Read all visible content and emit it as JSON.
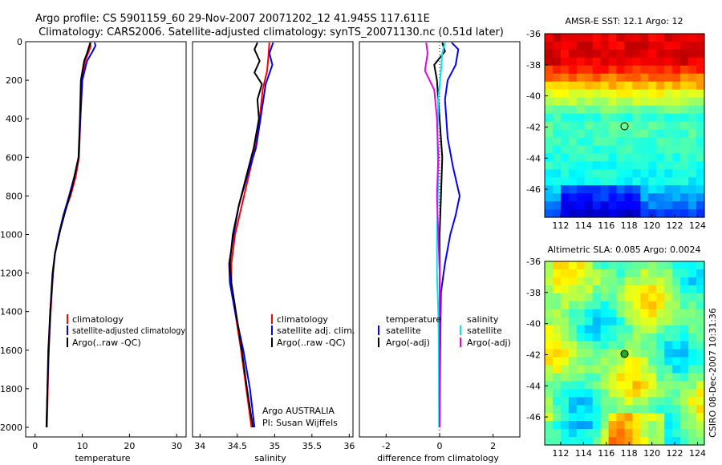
{
  "title": {
    "line1": "Argo profile: CS 5901159_60 29-Nov-2007 20071202_12 41.945S 117.611E",
    "line2": "Climatology: CARS2006. Satellite-adjusted climatology: synTS_20071130.nc (0.51d later)"
  },
  "colors": {
    "climatology": "#ff0000",
    "satellite": "#0000ff",
    "argo": "#000000",
    "salinity_satellite": "#00e5ee",
    "salinity_argo": "#ee00ee"
  },
  "chart_data": [
    {
      "type": "line",
      "name": "temperature-profile",
      "xlabel": "temperature",
      "ylabel": "",
      "xlim": [
        -2,
        32
      ],
      "xticks": [
        "0",
        "10",
        "20",
        "30"
      ],
      "ylim": [
        0,
        2050
      ],
      "yticks": [
        "0",
        "200",
        "400",
        "600",
        "800",
        "1000",
        "1200",
        "1400",
        "1600",
        "1800",
        "2000"
      ],
      "legend": [
        "climatology",
        "satellite-adjusted climatology",
        "Argo(..raw -QC)"
      ],
      "series": [
        {
          "name": "climatology",
          "color": "#ff0000",
          "points": [
            [
              11.5,
              5
            ],
            [
              11.8,
              20
            ],
            [
              11.4,
              50
            ],
            [
              10.6,
              100
            ],
            [
              10.0,
              200
            ],
            [
              9.6,
              400
            ],
            [
              9.3,
              600
            ],
            [
              8.6,
              700
            ],
            [
              7.5,
              800
            ],
            [
              6.0,
              900
            ],
            [
              5.1,
              1000
            ],
            [
              4.2,
              1100
            ],
            [
              3.8,
              1200
            ],
            [
              3.3,
              1400
            ],
            [
              2.9,
              1600
            ],
            [
              2.7,
              1800
            ],
            [
              2.5,
              2000
            ]
          ]
        },
        {
          "name": "satellite-adjusted climatology",
          "color": "#0000ff",
          "points": [
            [
              12.6,
              5
            ],
            [
              12.8,
              20
            ],
            [
              12.2,
              50
            ],
            [
              11.0,
              100
            ],
            [
              10.0,
              200
            ],
            [
              9.6,
              400
            ],
            [
              9.2,
              600
            ],
            [
              8.3,
              700
            ],
            [
              7.2,
              800
            ],
            [
              6.0,
              900
            ],
            [
              5.0,
              1000
            ],
            [
              4.2,
              1100
            ],
            [
              3.8,
              1200
            ],
            [
              3.2,
              1400
            ],
            [
              2.9,
              1600
            ],
            [
              2.6,
              1800
            ],
            [
              2.4,
              2000
            ]
          ]
        },
        {
          "name": "Argo(..raw -QC)",
          "color": "#000000",
          "points": [
            [
              11.8,
              5
            ],
            [
              11.5,
              20
            ],
            [
              11.0,
              60
            ],
            [
              10.4,
              100
            ],
            [
              9.7,
              200
            ],
            [
              9.5,
              400
            ],
            [
              9.2,
              600
            ],
            [
              8.7,
              660
            ],
            [
              7.8,
              760
            ],
            [
              6.4,
              880
            ],
            [
              5.3,
              980
            ],
            [
              4.2,
              1100
            ],
            [
              3.7,
              1200
            ],
            [
              3.2,
              1400
            ],
            [
              2.8,
              1600
            ],
            [
              2.6,
              1800
            ],
            [
              2.4,
              2000
            ]
          ]
        }
      ]
    },
    {
      "type": "line",
      "name": "salinity-profile",
      "xlabel": "salinity",
      "ylabel": "",
      "xlim": [
        33.9,
        36.05
      ],
      "xticks": [
        "34",
        "34.5",
        "35",
        "35.5",
        "36"
      ],
      "ylim": [
        0,
        2050
      ],
      "legend": [
        "climatology",
        "satellite adj. clim.",
        "Argo(..raw -QC)"
      ],
      "annotation": [
        "Argo AUSTRALIA",
        "PI: Susan Wijffels"
      ],
      "series": [
        {
          "name": "climatology",
          "color": "#ff0000",
          "points": [
            [
              34.93,
              5
            ],
            [
              34.92,
              60
            ],
            [
              34.9,
              150
            ],
            [
              34.84,
              250
            ],
            [
              34.8,
              400
            ],
            [
              34.74,
              550
            ],
            [
              34.65,
              700
            ],
            [
              34.56,
              850
            ],
            [
              34.47,
              1000
            ],
            [
              34.42,
              1150
            ],
            [
              34.42,
              1250
            ],
            [
              34.47,
              1400
            ],
            [
              34.55,
              1600
            ],
            [
              34.62,
              1800
            ],
            [
              34.69,
              2000
            ]
          ]
        },
        {
          "name": "satellite adj. clim.",
          "color": "#0000ff",
          "points": [
            [
              34.98,
              5
            ],
            [
              34.93,
              60
            ],
            [
              34.97,
              120
            ],
            [
              34.88,
              220
            ],
            [
              34.81,
              400
            ],
            [
              34.75,
              550
            ],
            [
              34.63,
              700
            ],
            [
              34.52,
              850
            ],
            [
              34.45,
              1000
            ],
            [
              34.39,
              1150
            ],
            [
              34.4,
              1250
            ],
            [
              34.47,
              1400
            ],
            [
              34.58,
              1600
            ],
            [
              34.67,
              1800
            ],
            [
              34.73,
              2000
            ]
          ]
        },
        {
          "name": "Argo(..raw -QC)",
          "color": "#000000",
          "points": [
            [
              34.77,
              5
            ],
            [
              34.73,
              40
            ],
            [
              34.8,
              100
            ],
            [
              34.73,
              160
            ],
            [
              34.83,
              220
            ],
            [
              34.77,
              300
            ],
            [
              34.79,
              400
            ],
            [
              34.72,
              550
            ],
            [
              34.62,
              700
            ],
            [
              34.52,
              850
            ],
            [
              34.44,
              1000
            ],
            [
              34.4,
              1150
            ],
            [
              34.42,
              1250
            ],
            [
              34.48,
              1400
            ],
            [
              34.56,
              1600
            ],
            [
              34.63,
              1800
            ],
            [
              34.71,
              2000
            ]
          ]
        }
      ]
    },
    {
      "type": "line",
      "name": "difference-profile",
      "xlabel": "difference from climatology",
      "ylabel": "",
      "xlim": [
        -3,
        3
      ],
      "xticks": [
        "-2",
        "0",
        "2"
      ],
      "ylim": [
        0,
        2050
      ],
      "legend": {
        "temperature": {
          "title": "temperature",
          "items": [
            "satellite",
            "Argo(-adj)"
          ]
        },
        "salinity": {
          "title": "salinity",
          "items": [
            "satellite",
            "Argo(-adj)"
          ]
        }
      },
      "series": [
        {
          "name": "temperature satellite",
          "color": "#0000ff",
          "points": [
            [
              0.45,
              5
            ],
            [
              0.7,
              40
            ],
            [
              0.6,
              120
            ],
            [
              0.3,
              200
            ],
            [
              0.2,
              300
            ],
            [
              0.3,
              500
            ],
            [
              0.5,
              650
            ],
            [
              0.75,
              800
            ],
            [
              0.6,
              900
            ],
            [
              0.4,
              1000
            ],
            [
              0.2,
              1150
            ],
            [
              0.05,
              1300
            ],
            [
              0.02,
              1600
            ],
            [
              0.0,
              2000
            ]
          ]
        },
        {
          "name": "temperature Argo(-adj)",
          "color": "#000000",
          "points": [
            [
              0.1,
              5
            ],
            [
              0.2,
              50
            ],
            [
              -0.2,
              120
            ],
            [
              -0.1,
              200
            ],
            [
              -0.05,
              300
            ],
            [
              0.0,
              400
            ],
            [
              0.1,
              600
            ],
            [
              0.05,
              800
            ],
            [
              0.0,
              1000
            ],
            [
              0.0,
              1400
            ],
            [
              0.0,
              2000
            ]
          ]
        },
        {
          "name": "salinity satellite",
          "color": "#00e5ee",
          "points": [
            [
              0.2,
              5
            ],
            [
              0.1,
              60
            ],
            [
              0.05,
              150
            ],
            [
              -0.05,
              300
            ],
            [
              -0.08,
              500
            ],
            [
              -0.05,
              700
            ],
            [
              -0.1,
              1000
            ],
            [
              -0.1,
              1200
            ],
            [
              -0.05,
              1400
            ],
            [
              -0.03,
              1600
            ],
            [
              -0.02,
              2000
            ]
          ]
        },
        {
          "name": "salinity Argo(-adj)",
          "color": "#ee00ee",
          "points": [
            [
              -0.5,
              5
            ],
            [
              -0.45,
              60
            ],
            [
              -0.55,
              150
            ],
            [
              -0.2,
              250
            ],
            [
              -0.1,
              400
            ],
            [
              -0.05,
              600
            ],
            [
              -0.1,
              800
            ],
            [
              -0.05,
              1000
            ],
            [
              0.0,
              1200
            ],
            [
              0.0,
              1400
            ],
            [
              0.0,
              2000
            ]
          ]
        }
      ]
    },
    {
      "type": "heatmap",
      "name": "amsr-e-sst-map",
      "title": "AMSR-E SST: 12.1 Argo: 12",
      "xlim": [
        110.6,
        124.6
      ],
      "ylim": [
        -47.8,
        -36
      ],
      "xticks": [
        "112",
        "114",
        "116",
        "118",
        "120",
        "122",
        "124"
      ],
      "yticks": [
        "-36",
        "-38",
        "-40",
        "-42",
        "-44",
        "-46"
      ],
      "marker": {
        "lon": 117.6,
        "lat": -41.95
      }
    },
    {
      "type": "heatmap",
      "name": "altimetric-sla-map",
      "title": "Altimetric SLA: 0.085 Argo: 0.0024",
      "xlim": [
        110.6,
        124.6
      ],
      "ylim": [
        -47.8,
        -36
      ],
      "xticks": [
        "112",
        "114",
        "116",
        "118",
        "120",
        "122",
        "124"
      ],
      "yticks": [
        "-36",
        "-38",
        "-40",
        "-42",
        "-44",
        "-46"
      ],
      "marker": {
        "lon": 117.6,
        "lat": -41.95
      }
    }
  ],
  "credit": "CSIRO 08-Dec-2007 10:31:36"
}
